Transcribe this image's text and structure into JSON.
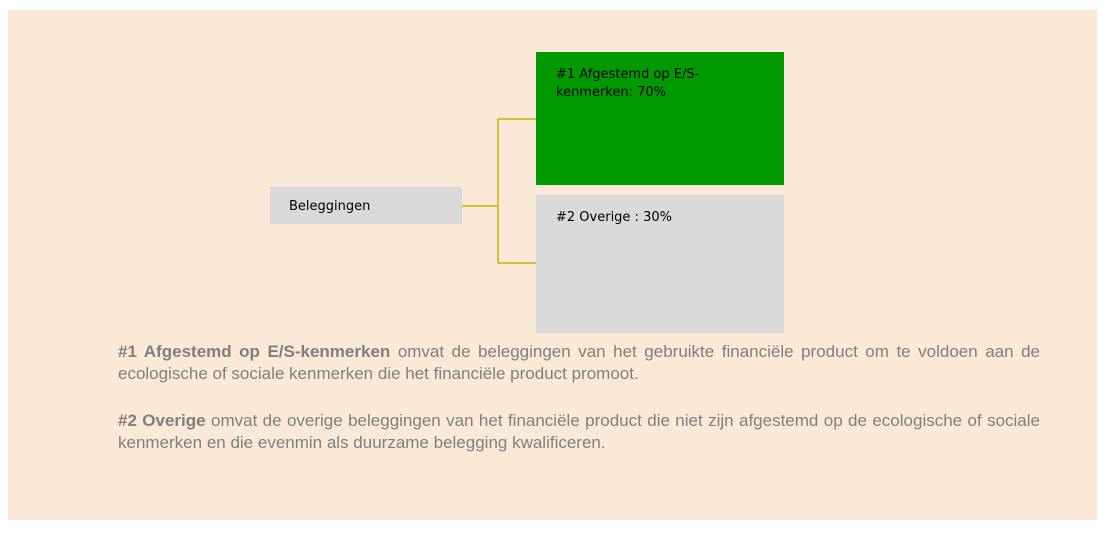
{
  "nodes": [
    {
      "label": "Beleggingen"
    },
    {
      "label": "#1 Afgestemd op E/S-kenmerken: 70%"
    },
    {
      "label": "#2 Overige : 30%"
    }
  ],
  "descriptions": [
    {
      "term": "#1 Afgestemd op E/S-kenmerken",
      "text": " omvat de beleggingen van het gebruikte financiële product om te voldoen aan de ecologische of sociale kenmerken die het financiële product promoot."
    },
    {
      "term": "#2 Overige",
      "text": " omvat de overige beleggingen van het financiële product die niet zijn afgestemd op de ecologische of sociale kenmerken en die evenmin als duurzame belegging kwalificeren."
    }
  ]
}
